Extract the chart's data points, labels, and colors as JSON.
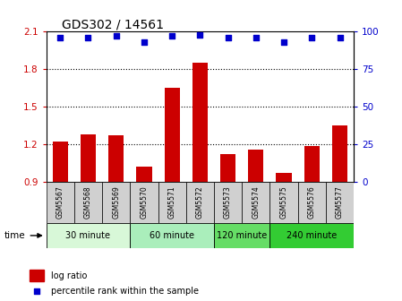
{
  "title": "GDS302 / 14561",
  "samples": [
    "GSM5567",
    "GSM5568",
    "GSM5569",
    "GSM5570",
    "GSM5571",
    "GSM5572",
    "GSM5573",
    "GSM5574",
    "GSM5575",
    "GSM5576",
    "GSM5577"
  ],
  "log_ratios": [
    1.22,
    1.28,
    1.27,
    1.02,
    1.65,
    1.85,
    1.12,
    1.16,
    0.97,
    1.19,
    1.35
  ],
  "percentile_ranks": [
    96,
    96,
    97,
    93,
    97,
    98,
    96,
    96,
    93,
    96,
    96
  ],
  "bar_color": "#cc0000",
  "dot_color": "#0000cc",
  "ymin": 0.9,
  "ymax": 2.1,
  "y_ticks": [
    0.9,
    1.2,
    1.5,
    1.8,
    2.1
  ],
  "y2min": 0,
  "y2max": 100,
  "y2_ticks": [
    0,
    25,
    50,
    75,
    100
  ],
  "groups": [
    {
      "label": "30 minute",
      "indices": [
        0,
        1,
        2
      ],
      "color": "#d8f8d8"
    },
    {
      "label": "60 minute",
      "indices": [
        3,
        4,
        5
      ],
      "color": "#aaeebb"
    },
    {
      "label": "120 minute",
      "indices": [
        6,
        7
      ],
      "color": "#66dd66"
    },
    {
      "label": "240 minute",
      "indices": [
        8,
        9,
        10
      ],
      "color": "#33cc33"
    }
  ],
  "sample_box_color": "#d0d0d0",
  "time_label": "time",
  "legend_bar_label": "log ratio",
  "legend_dot_label": "percentile rank within the sample",
  "bar_legend_color": "#cc0000",
  "dot_legend_color": "#0000cc",
  "xlabel_color": "#cc0000",
  "y2label_color": "#0000cc",
  "title_fontsize": 10
}
